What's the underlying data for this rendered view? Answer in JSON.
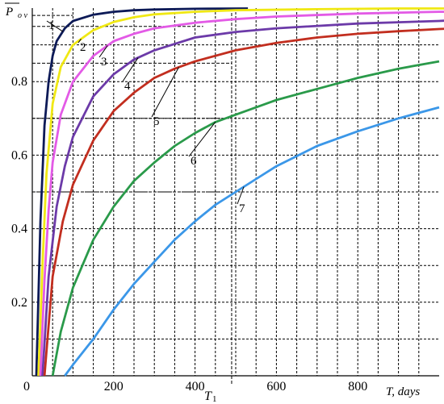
{
  "chart_data": {
    "type": "line",
    "title": "",
    "xlabel": "T,  days",
    "ylabel": "P",
    "ylabel_subscript": "o v",
    "xlim": [
      0,
      1000
    ],
    "ylim": [
      0,
      1
    ],
    "x_ticks": [
      0,
      200,
      400,
      600,
      800
    ],
    "x_tick_labels": [
      "0",
      "200",
      "400",
      "600",
      "800"
    ],
    "y_ticks": [
      0.2,
      0.4,
      0.6,
      0.8
    ],
    "y_tick_labels": [
      "0.2",
      "0.4",
      "0.6",
      "0.8"
    ],
    "grid": true,
    "legend": "none",
    "annotation": {
      "label": "T",
      "subscript": "1",
      "x": 490,
      "y": 0.5
    },
    "reference_levels": [
      {
        "y": 0.98,
        "x_end": 100,
        "color": "#000000"
      },
      {
        "y": 0.95,
        "x_end": 420,
        "color": "#000000"
      },
      {
        "y": 0.85,
        "x_end": 490,
        "color": "#000000"
      },
      {
        "y": 0.7,
        "x_end": 490,
        "color": "#000000"
      },
      {
        "y": 0.5,
        "x_end": 490,
        "color": "#000000"
      }
    ],
    "series": [
      {
        "name": "1",
        "color": "#0d1a57",
        "x": [
          10,
          20,
          30,
          40,
          50,
          60,
          80,
          100,
          150,
          200,
          250,
          300,
          400,
          530
        ],
        "y": [
          0.0,
          0.42,
          0.68,
          0.8,
          0.87,
          0.91,
          0.945,
          0.965,
          0.982,
          0.99,
          0.994,
          0.996,
          0.998,
          0.999
        ]
      },
      {
        "name": "2",
        "color": "#f0e814",
        "x": [
          15,
          25,
          35,
          50,
          70,
          100,
          150,
          200,
          250,
          300,
          400,
          500,
          700,
          900,
          1040
        ],
        "y": [
          0.0,
          0.3,
          0.55,
          0.74,
          0.84,
          0.9,
          0.94,
          0.962,
          0.975,
          0.983,
          0.99,
          0.994,
          0.997,
          0.999,
          0.999
        ]
      },
      {
        "name": "3",
        "color": "#e35ae6",
        "x": [
          20,
          30,
          40,
          50,
          70,
          100,
          150,
          200,
          250,
          300,
          400,
          500,
          600,
          800,
          1000,
          1040
        ],
        "y": [
          0.0,
          0.26,
          0.45,
          0.58,
          0.71,
          0.8,
          0.87,
          0.91,
          0.93,
          0.945,
          0.96,
          0.97,
          0.977,
          0.985,
          0.99,
          0.99
        ]
      },
      {
        "name": "4",
        "color": "#6c3aa8",
        "x": [
          25,
          40,
          60,
          80,
          100,
          150,
          200,
          250,
          300,
          400,
          500,
          600,
          800,
          1000,
          1040
        ],
        "y": [
          0.0,
          0.27,
          0.46,
          0.57,
          0.65,
          0.76,
          0.82,
          0.86,
          0.885,
          0.92,
          0.935,
          0.945,
          0.958,
          0.965,
          0.967
        ]
      },
      {
        "name": "5",
        "color": "#c22e1f",
        "x": [
          30,
          50,
          75,
          100,
          150,
          200,
          250,
          300,
          350,
          400,
          500,
          600,
          700,
          800,
          900,
          1000,
          1040
        ],
        "y": [
          0.0,
          0.27,
          0.42,
          0.52,
          0.64,
          0.72,
          0.77,
          0.81,
          0.835,
          0.855,
          0.885,
          0.905,
          0.92,
          0.93,
          0.937,
          0.943,
          0.945
        ]
      },
      {
        "name": "6",
        "color": "#2a9a4a",
        "x": [
          50,
          70,
          100,
          150,
          200,
          250,
          300,
          350,
          400,
          450,
          500,
          600,
          700,
          800,
          900,
          1000
        ],
        "y": [
          0.0,
          0.12,
          0.24,
          0.37,
          0.46,
          0.53,
          0.58,
          0.625,
          0.66,
          0.69,
          0.71,
          0.75,
          0.78,
          0.81,
          0.835,
          0.855
        ]
      },
      {
        "name": "7",
        "color": "#3b97e8",
        "x": [
          80,
          100,
          150,
          200,
          250,
          300,
          350,
          400,
          450,
          500,
          550,
          600,
          700,
          800,
          900,
          1000
        ],
        "y": [
          0.0,
          0.03,
          0.1,
          0.18,
          0.25,
          0.31,
          0.37,
          0.42,
          0.465,
          0.5,
          0.535,
          0.57,
          0.625,
          0.665,
          0.7,
          0.73
        ]
      }
    ]
  }
}
